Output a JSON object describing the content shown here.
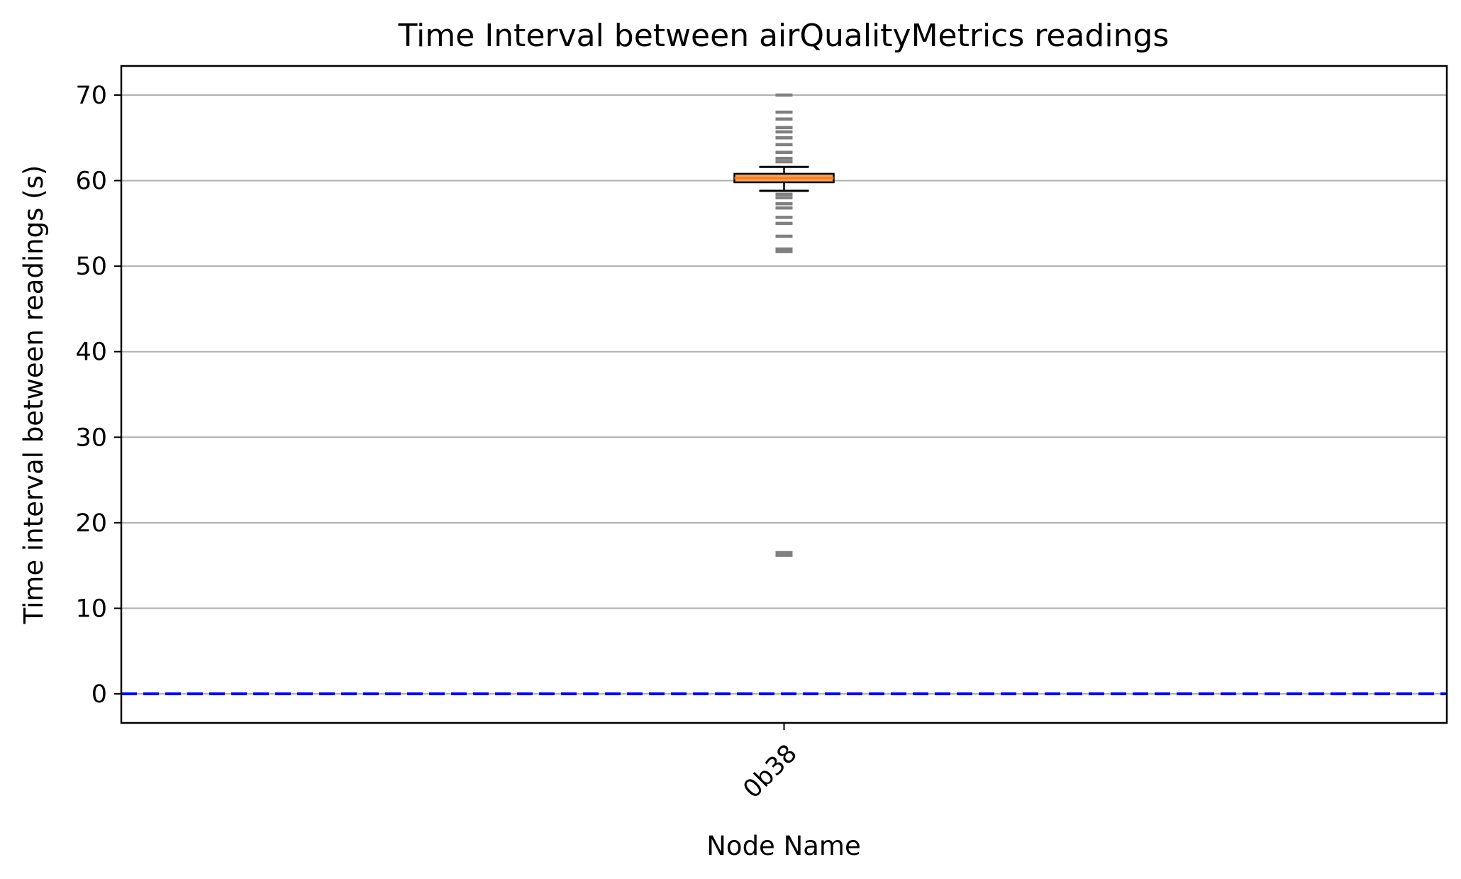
{
  "chart_data": {
    "type": "box",
    "title": "Time Interval between airQualityMetrics readings",
    "xlabel": "Node Name",
    "ylabel": "Time interval between readings (s)",
    "ylim": [
      -3.4,
      73.4
    ],
    "yticks": [
      0,
      10,
      20,
      30,
      40,
      50,
      60,
      70
    ],
    "grid": "horizontal",
    "categories": [
      "0b38"
    ],
    "boxes": [
      {
        "name": "0b38",
        "whisker_low": 58.8,
        "q1": 59.8,
        "median": 60.3,
        "q3": 60.8,
        "whisker_high": 61.6,
        "outliers": [
          16.2,
          16.5,
          51.7,
          52.0,
          53.5,
          55.0,
          55.7,
          56.8,
          57.3,
          58.0,
          58.4,
          62.2,
          62.6,
          63.3,
          64.2,
          65.0,
          65.7,
          66.2,
          67.2,
          68.0,
          70.0
        ]
      }
    ],
    "reference_line": {
      "y": 0,
      "style": "dashed",
      "color": "#0000ff"
    },
    "colors": {
      "box_fill": "#f4a261",
      "median": "#ff7f0e",
      "outlier": "#808080",
      "grid": "#b0b0b0"
    }
  }
}
